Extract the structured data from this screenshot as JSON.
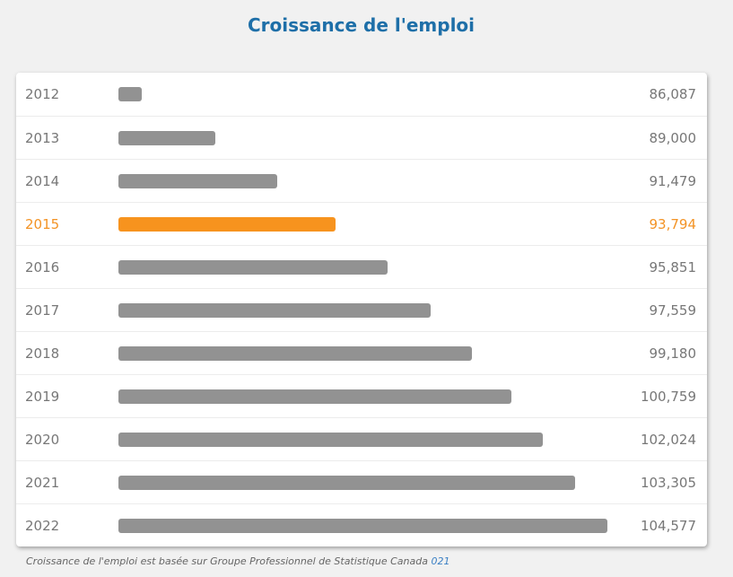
{
  "chart_data": {
    "type": "bar",
    "orientation": "horizontal",
    "title": "Croissance de l'emploi",
    "categories": [
      "2012",
      "2013",
      "2014",
      "2015",
      "2016",
      "2017",
      "2018",
      "2019",
      "2020",
      "2021",
      "2022"
    ],
    "values": [
      86087,
      89000,
      91479,
      93794,
      95851,
      97559,
      99180,
      100759,
      102024,
      103305,
      104577
    ],
    "labels": [
      "86,087",
      "89,000",
      "91,479",
      "93,794",
      "95,851",
      "97,559",
      "99,180",
      "100,759",
      "102,024",
      "103,305",
      "104,577"
    ],
    "highlight": "2015",
    "colors": {
      "bar": "#929292",
      "highlight": "#f7931e",
      "title": "#1e6fa8"
    }
  },
  "footnote": {
    "text": "Croissance de l'emploi est basée sur Groupe Professionnel de Statistique Canada ",
    "code": "021"
  }
}
